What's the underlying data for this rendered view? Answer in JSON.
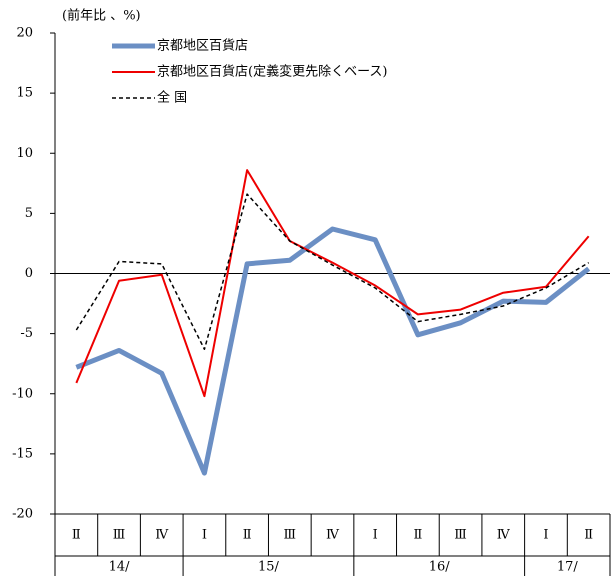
{
  "chart_data": {
    "type": "line",
    "y_label": "(前年比 、%)",
    "groups": [
      {
        "label": "14/",
        "categories": [
          "Ⅱ",
          "Ⅲ",
          "Ⅳ"
        ]
      },
      {
        "label": "15/",
        "categories": [
          "Ⅰ",
          "Ⅱ",
          "Ⅲ",
          "Ⅳ"
        ]
      },
      {
        "label": "16/",
        "categories": [
          "Ⅰ",
          "Ⅱ",
          "Ⅲ",
          "Ⅳ"
        ]
      },
      {
        "label": "17/",
        "categories": [
          "Ⅰ",
          "Ⅱ"
        ]
      }
    ],
    "series": [
      {
        "name": "京都地区百貨店",
        "color": "#6b8fc4",
        "width": 5,
        "dash": "none",
        "values": [
          -7.8,
          -6.4,
          -8.3,
          -16.6,
          0.8,
          1.1,
          3.7,
          2.8,
          -5.1,
          -4.1,
          -2.3,
          -2.4,
          0.4
        ]
      },
      {
        "name": "京都地区百貨店(定義変更先除くベース)",
        "color": "#ee0000",
        "width": 2,
        "dash": "none",
        "values": [
          -9.1,
          -0.6,
          -0.1,
          -10.2,
          8.6,
          2.7,
          0.9,
          -1.0,
          -3.4,
          -3.0,
          -1.6,
          -1.1,
          3.1
        ]
      },
      {
        "name": "全 国",
        "color": "#000000",
        "width": 1.5,
        "dash": "4 3",
        "values": [
          -4.7,
          1.0,
          0.8,
          -6.3,
          6.6,
          2.7,
          0.7,
          -1.2,
          -4.0,
          -3.4,
          -2.7,
          -1.2,
          0.9
        ]
      }
    ],
    "ylim": [
      -20,
      20
    ],
    "yticks": [
      -20,
      -15,
      -10,
      -5,
      0,
      5,
      10,
      15,
      20
    ]
  }
}
